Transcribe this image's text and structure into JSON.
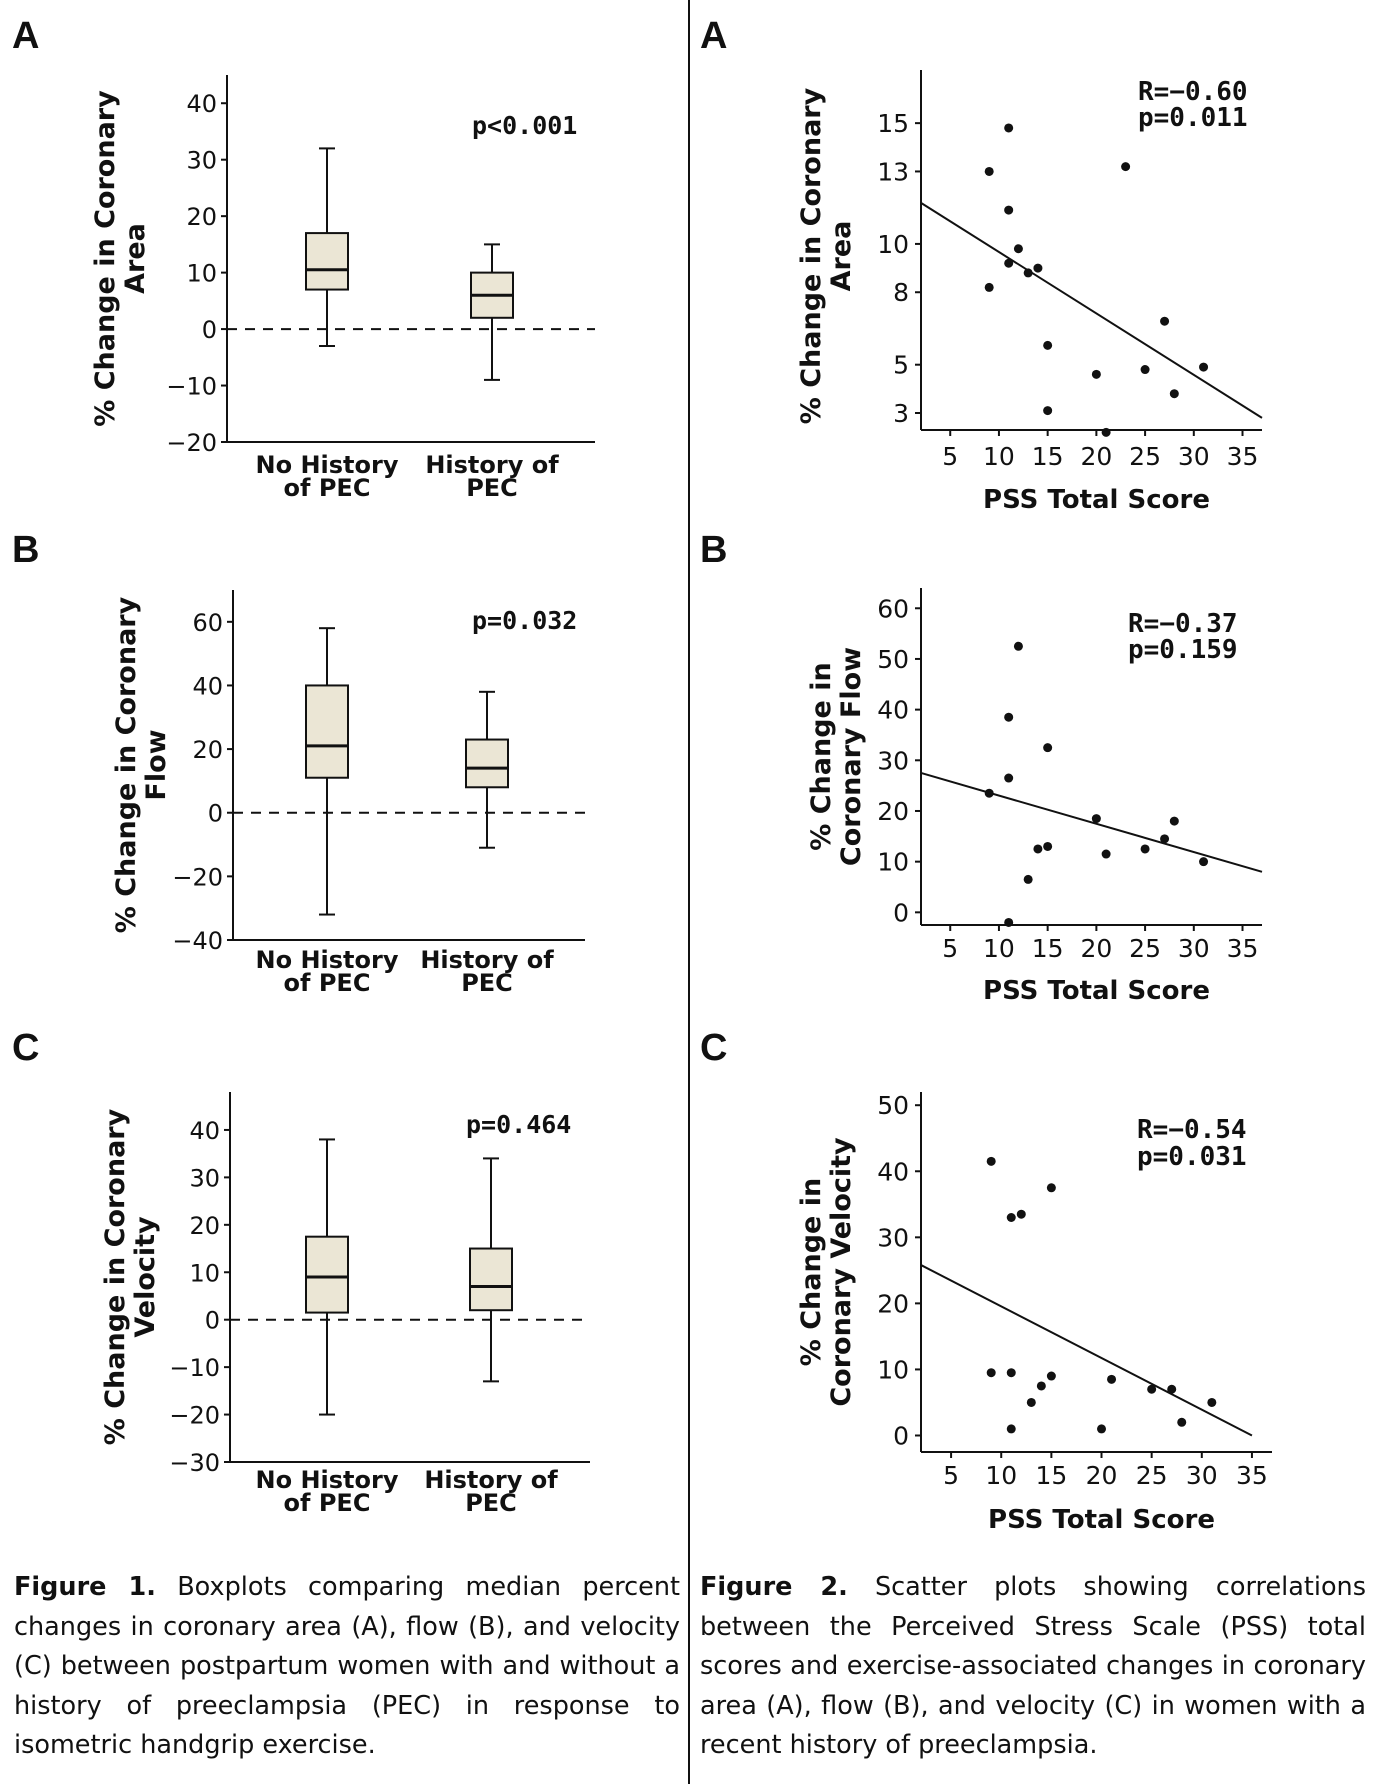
{
  "colors": {
    "box_fill": "#ebe6d5",
    "ink": "#111111"
  },
  "figure1": {
    "panels": [
      {
        "letter": "A",
        "ylabel": [
          "% Change in Coronary",
          "Area"
        ],
        "p_text": "p<0.001"
      },
      {
        "letter": "B",
        "ylabel": [
          "% Change in Coronary",
          "Flow"
        ],
        "p_text": "p=0.032"
      },
      {
        "letter": "C",
        "ylabel": [
          "% Change in Coronary",
          "Velocity"
        ],
        "p_text": "p=0.464"
      }
    ],
    "caption": {
      "bold": "Figure 1.",
      "text": " Boxplots comparing median percent changes in coronary area (A), flow (B), and velocity (C) between postpartum women with and without a history of preeclampsia (PEC) in response to isometric handgrip exercise."
    }
  },
  "figure2": {
    "panels": [
      {
        "letter": "A",
        "ylabel": [
          "% Change in Coronary",
          "Area"
        ],
        "stats": [
          "R=−0.60",
          "p=0.011"
        ]
      },
      {
        "letter": "B",
        "ylabel": [
          "% Change in",
          "Coronary Flow"
        ],
        "stats": [
          "R=−0.37",
          "p=0.159"
        ]
      },
      {
        "letter": "C",
        "ylabel": [
          "% Change in",
          "Coronary Velocity"
        ],
        "stats": [
          "R=−0.54",
          "p=0.031"
        ]
      }
    ],
    "caption": {
      "bold": "Figure 2.",
      "text": " Scatter plots showing correlations between the Perceived Stress Scale (PSS) total scores and exercise-associated changes in coronary area (A), flow (B), and velocity (C) in women with a recent history of preeclampsia."
    }
  },
  "chart_data": [
    {
      "type": "box",
      "title": "Figure 1A",
      "ylabel": "% Change in Coronary Area",
      "ylim": [
        -20,
        45
      ],
      "yticks": [
        -20,
        -10,
        0,
        10,
        20,
        30,
        40
      ],
      "ytick_labels": [
        "−20",
        "−10",
        "0",
        "10",
        "20",
        "30",
        "40"
      ],
      "categories": [
        [
          "No History",
          "of PEC"
        ],
        [
          "History of",
          "PEC"
        ]
      ],
      "boxes": [
        {
          "min": -3,
          "q1": 7,
          "median": 10.5,
          "q3": 17,
          "max": 32
        },
        {
          "min": -9,
          "q1": 2,
          "median": 6,
          "q3": 10,
          "max": 15
        }
      ],
      "reference_line": 0,
      "annotation": "p<0.001"
    },
    {
      "type": "box",
      "title": "Figure 1B",
      "ylabel": "% Change in Coronary Flow",
      "ylim": [
        -40,
        70
      ],
      "yticks": [
        -40,
        -20,
        0,
        20,
        40,
        60
      ],
      "ytick_labels": [
        "−40",
        "−20",
        "0",
        "20",
        "40",
        "60"
      ],
      "categories": [
        [
          "No History",
          "of PEC"
        ],
        [
          "History of",
          "PEC"
        ]
      ],
      "boxes": [
        {
          "min": -32,
          "q1": 11,
          "median": 21,
          "q3": 40,
          "max": 58
        },
        {
          "min": -11,
          "q1": 8,
          "median": 14,
          "q3": 23,
          "max": 38
        }
      ],
      "reference_line": 0,
      "annotation": "p=0.032"
    },
    {
      "type": "box",
      "title": "Figure 1C",
      "ylabel": "% Change in Coronary Velocity",
      "ylim": [
        -30,
        48
      ],
      "yticks": [
        -30,
        -20,
        -10,
        0,
        10,
        20,
        30,
        40
      ],
      "ytick_labels": [
        "−30",
        "−20",
        "−10",
        "0",
        "10",
        "20",
        "30",
        "40"
      ],
      "categories": [
        [
          "No History",
          "of PEC"
        ],
        [
          "History of",
          "PEC"
        ]
      ],
      "boxes": [
        {
          "min": -20,
          "q1": 1.5,
          "median": 9,
          "q3": 17.5,
          "max": 38
        },
        {
          "min": -13,
          "q1": 2,
          "median": 7,
          "q3": 15,
          "max": 34
        }
      ],
      "reference_line": 0,
      "annotation": "p=0.464"
    },
    {
      "type": "scatter",
      "title": "Figure 2A",
      "xlabel": "PSS Total Score",
      "ylabel": "% Change in Coronary Area",
      "xlim": [
        2,
        37
      ],
      "ylim": [
        1.8,
        17.2
      ],
      "xticks": [
        5,
        10,
        15,
        20,
        25,
        30,
        35
      ],
      "yticks": [
        3,
        5,
        8,
        10,
        13,
        15
      ],
      "points": [
        [
          9,
          8.2
        ],
        [
          9,
          13.0
        ],
        [
          11,
          14.8
        ],
        [
          11,
          11.4
        ],
        [
          11,
          9.2
        ],
        [
          12,
          9.8
        ],
        [
          13,
          8.8
        ],
        [
          14,
          9.0
        ],
        [
          15,
          5.8
        ],
        [
          15,
          3.1
        ],
        [
          20,
          4.6
        ],
        [
          21,
          2.2
        ],
        [
          23,
          13.2
        ],
        [
          25,
          4.8
        ],
        [
          27,
          6.8
        ],
        [
          28,
          3.8
        ],
        [
          31,
          4.9
        ]
      ],
      "fit_line": [
        [
          2,
          11.7
        ],
        [
          37,
          2.8
        ]
      ],
      "annotation": [
        "R=−0.60",
        "p=0.011"
      ]
    },
    {
      "type": "scatter",
      "title": "Figure 2B",
      "xlabel": "PSS Total Score",
      "ylabel": "% Change in Coronary Flow",
      "xlim": [
        2,
        37
      ],
      "ylim": [
        -2.5,
        64
      ],
      "xticks": [
        5,
        10,
        15,
        20,
        25,
        30,
        35
      ],
      "yticks": [
        0,
        10,
        20,
        30,
        40,
        50,
        60
      ],
      "points": [
        [
          9,
          23.5
        ],
        [
          11,
          38.5
        ],
        [
          11,
          26.5
        ],
        [
          12,
          52.5
        ],
        [
          13,
          6.5
        ],
        [
          14,
          12.5
        ],
        [
          15,
          13.0
        ],
        [
          15,
          32.5
        ],
        [
          20,
          18.5
        ],
        [
          21,
          11.5
        ],
        [
          25,
          12.5
        ],
        [
          27,
          14.5
        ],
        [
          28,
          18.0
        ],
        [
          31,
          10.0
        ],
        [
          11,
          -2.0
        ]
      ],
      "fit_line": [
        [
          2,
          27.5
        ],
        [
          37,
          8.0
        ]
      ],
      "annotation": [
        "R=−0.37",
        "p=0.159"
      ]
    },
    {
      "type": "scatter",
      "title": "Figure 2C",
      "xlabel": "PSS Total Score",
      "ylabel": "% Change in Coronary Velocity",
      "xlim": [
        2,
        37
      ],
      "ylim": [
        -2.5,
        52
      ],
      "xticks": [
        5,
        10,
        15,
        20,
        25,
        30,
        35
      ],
      "yticks": [
        0,
        10,
        20,
        30,
        40,
        50
      ],
      "points": [
        [
          9,
          41.5
        ],
        [
          9,
          9.5
        ],
        [
          11,
          33.0
        ],
        [
          11,
          9.5
        ],
        [
          11,
          1.0
        ],
        [
          12,
          33.5
        ],
        [
          13,
          5.0
        ],
        [
          14,
          7.5
        ],
        [
          15,
          37.5
        ],
        [
          15,
          9.0
        ],
        [
          20,
          1.0
        ],
        [
          21,
          8.5
        ],
        [
          25,
          7.0
        ],
        [
          27,
          7.0
        ],
        [
          28,
          2.0
        ],
        [
          31,
          5.0
        ]
      ],
      "fit_line": [
        [
          2,
          25.8
        ],
        [
          35,
          0.0
        ]
      ],
      "annotation": [
        "R=−0.54",
        "p=0.031"
      ]
    }
  ]
}
